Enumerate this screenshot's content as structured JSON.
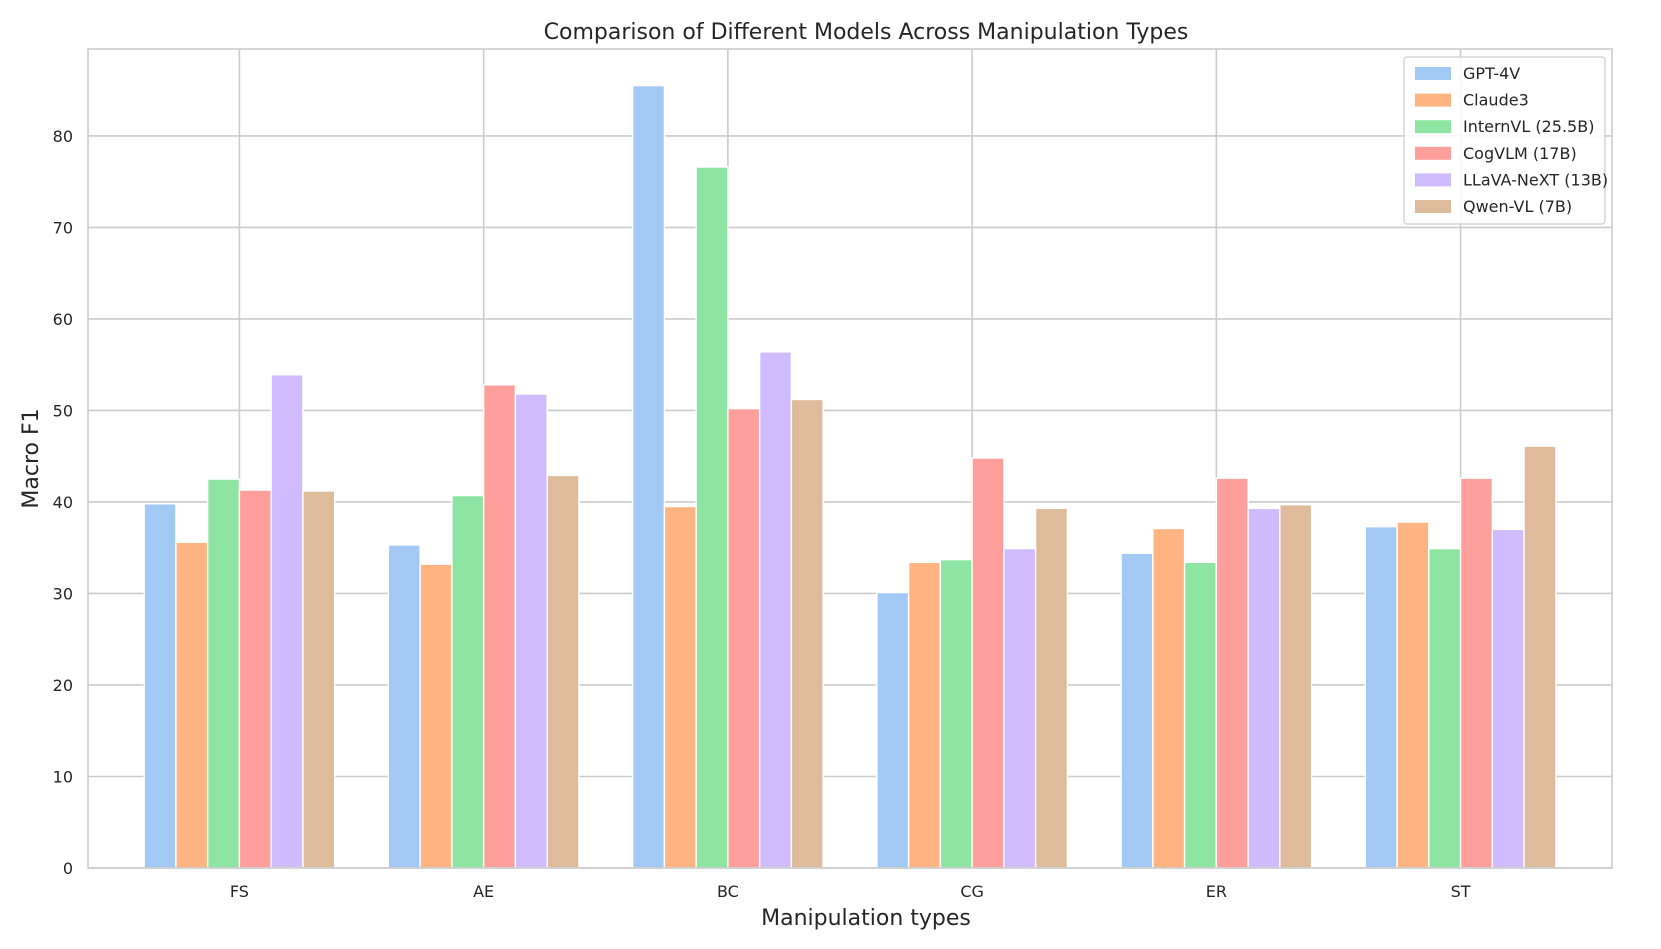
{
  "chart_data": {
    "type": "bar",
    "title": "Comparison of Different Models Across Manipulation Types",
    "xlabel": "Manipulation types",
    "ylabel": "Macro F1",
    "categories": [
      "FS",
      "AE",
      "BC",
      "CG",
      "ER",
      "ST"
    ],
    "ylim": [
      0,
      89.5
    ],
    "yticks": [
      0,
      10,
      20,
      30,
      40,
      50,
      60,
      70,
      80
    ],
    "grid": true,
    "legend_position": "top-right",
    "series": [
      {
        "name": "GPT-4V",
        "color": "#a1c9f4",
        "values": [
          39.8,
          35.3,
          85.5,
          30.1,
          34.4,
          37.3
        ]
      },
      {
        "name": "Claude3",
        "color": "#ffb482",
        "values": [
          35.6,
          33.2,
          39.5,
          33.4,
          37.1,
          37.8
        ]
      },
      {
        "name": "InternVL (25.5B)",
        "color": "#8de5a1",
        "values": [
          42.5,
          40.7,
          76.6,
          33.7,
          33.4,
          34.9
        ]
      },
      {
        "name": "CogVLM (17B)",
        "color": "#ff9f9b",
        "values": [
          41.3,
          52.8,
          50.2,
          44.8,
          42.6,
          42.6
        ]
      },
      {
        "name": "LLaVA-NeXT (13B)",
        "color": "#d0bbff",
        "values": [
          53.9,
          51.8,
          56.4,
          34.9,
          39.3,
          37.0
        ]
      },
      {
        "name": "Qwen-VL (7B)",
        "color": "#debb9b",
        "values": [
          41.2,
          42.9,
          51.2,
          39.3,
          39.7,
          46.1
        ]
      }
    ]
  }
}
